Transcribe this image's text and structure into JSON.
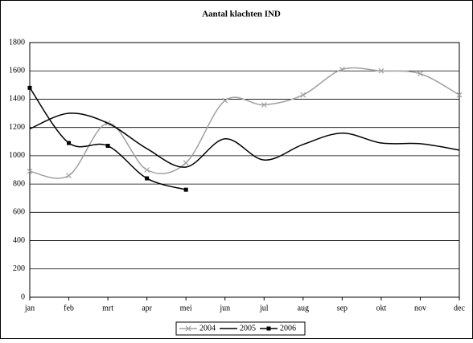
{
  "chart_data": {
    "type": "line",
    "title": "Aantal klachten IND",
    "categories": [
      "jan",
      "feb",
      "mrt",
      "apr",
      "mei",
      "jun",
      "jul",
      "aug",
      "sep",
      "okt",
      "nov",
      "dec"
    ],
    "series": [
      {
        "name": "2004",
        "color": "#a0a0a0",
        "marker": "x",
        "values": [
          890,
          860,
          1230,
          900,
          950,
          1390,
          1360,
          1430,
          1610,
          1600,
          1580,
          1430
        ]
      },
      {
        "name": "2005",
        "color": "#000000",
        "values": [
          1190,
          1300,
          1230,
          1050,
          920,
          1120,
          970,
          1080,
          1160,
          1090,
          1085,
          1040
        ]
      },
      {
        "name": "2006",
        "color": "#000000",
        "marker": "square",
        "values": [
          1480,
          1090,
          1070,
          840,
          760,
          null,
          null,
          null,
          null,
          null,
          null,
          null
        ]
      }
    ],
    "ylim": [
      0,
      1800
    ],
    "yticks": [
      0,
      200,
      400,
      600,
      800,
      1000,
      1200,
      1400,
      1600,
      1800
    ],
    "grid": true,
    "legend": "bottom"
  }
}
